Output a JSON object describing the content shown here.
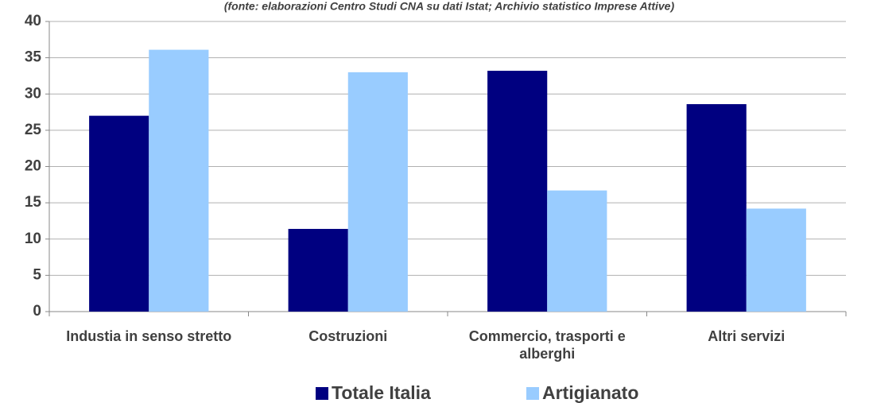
{
  "chart_data": {
    "type": "bar",
    "subtitle": "(fonte: elaborazioni Centro Studi CNA su dati Istat; Archivio statistico Imprese Attive)",
    "categories": [
      "Industia in senso stretto",
      "Costruzioni",
      "Commercio, trasporti e alberghi",
      "Altri servizi"
    ],
    "series": [
      {
        "name": "Totale Italia",
        "color": "#000080",
        "values": [
          27,
          11.4,
          33.2,
          28.6
        ]
      },
      {
        "name": "Artigianato",
        "color": "#99ccff",
        "values": [
          36.1,
          33,
          16.7,
          14.2
        ]
      }
    ],
    "ylim": [
      0,
      40
    ],
    "yticks": [
      0,
      5,
      10,
      15,
      20,
      25,
      30,
      35,
      40
    ],
    "grid": true,
    "legend": "bottom"
  }
}
